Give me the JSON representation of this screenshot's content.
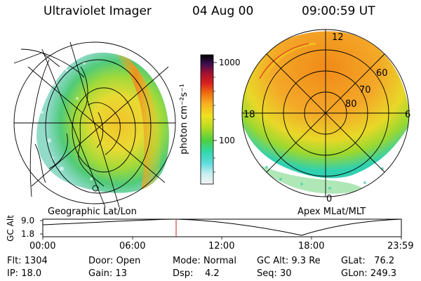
{
  "header": {
    "instrument": "Ultraviolet Imager",
    "date": "04 Aug 00",
    "time": "09:00:59 UT"
  },
  "colorbar": {
    "unit_label": "photon cm⁻²s⁻¹",
    "tick_labels": [
      "1000",
      "100"
    ],
    "colors": [
      "#f4f4f4",
      "#d8eef0",
      "#8fe0e8",
      "#30d8c8",
      "#40d070",
      "#9ad830",
      "#e8e020",
      "#f8b020",
      "#f07810",
      "#d83020",
      "#a01030",
      "#5a1060",
      "#1a1a40",
      "#000000"
    ]
  },
  "left_panel": {
    "caption": "Geographic Lat/Lon"
  },
  "right_panel": {
    "caption": "Apex MLat/MLT",
    "mlt_labels": {
      "top": "12",
      "left": "18",
      "right": "6",
      "bottom": "0"
    },
    "lat_labels": [
      "60",
      "70",
      "80"
    ]
  },
  "altitude_plot": {
    "ylabel": "GC Alt",
    "y_ticks": [
      "9.0",
      "1.8"
    ],
    "x_ticks": [
      "00:00",
      "06:00",
      "12:00",
      "18:00",
      "23:59"
    ],
    "marker_color": "#cc2222"
  },
  "status": {
    "flt": {
      "label": "Flt:",
      "value": "1304"
    },
    "ip": {
      "label": "IP:",
      "value": "18.0"
    },
    "door": {
      "label": "Door:",
      "value": "Open"
    },
    "gain": {
      "label": "Gain:",
      "value": "13"
    },
    "mode": {
      "label": "Mode:",
      "value": "Normal"
    },
    "dsp": {
      "label": "Dsp:",
      "value": "4.2"
    },
    "gcalt": {
      "label": "GC Alt:",
      "value": "9.3 Re"
    },
    "seq": {
      "label": "Seq:",
      "value": "30"
    },
    "glat": {
      "label": "GLat:",
      "value": "76.2"
    },
    "glon": {
      "label": "GLon:",
      "value": "249.3"
    }
  }
}
